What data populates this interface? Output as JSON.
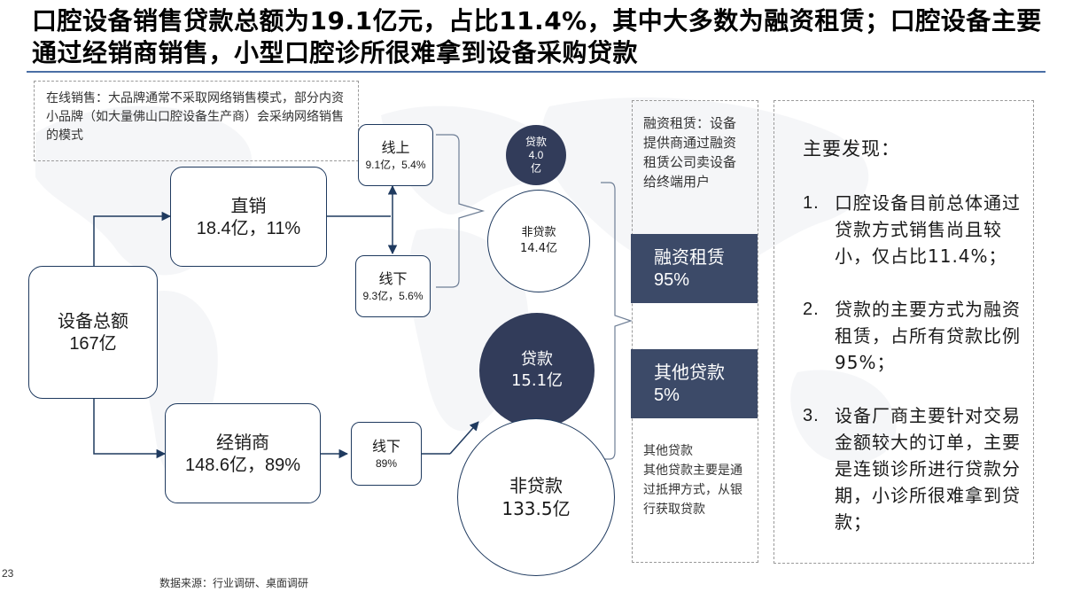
{
  "title": "口腔设备销售贷款总额为19.1亿元，占比11.4%，其中大多数为融资租赁；口腔设备主要通过经销商销售，小型口腔诊所很难拿到设备采购贷款",
  "online_note": "在线销售：大品牌通常不采取网络销售模式，部分内资小品牌（如大量佛山口腔设备生产商）会采纳网络销售的模式",
  "total": {
    "label": "设备总额",
    "value": "167亿"
  },
  "direct": {
    "label": "直销",
    "value": "18.4亿，11%"
  },
  "dealer": {
    "label": "经销商",
    "value": "148.6亿，89%"
  },
  "online": {
    "label": "线上",
    "value": "9.1亿，5.4%"
  },
  "offline_direct": {
    "label": "线下",
    "value": "9.3亿，5.6%"
  },
  "offline_dealer": {
    "label": "线下",
    "value": "89%"
  },
  "loan_small": {
    "label": "贷款",
    "value": "4.0",
    "unit": "亿"
  },
  "nonloan_small": {
    "label": "非贷款",
    "value": "14.4亿"
  },
  "loan_big": {
    "label": "贷款",
    "value": "15.1亿"
  },
  "nonloan_big": {
    "label": "非贷款",
    "value": "133.5亿"
  },
  "leasing_note": "融资租赁：设备提供商通过融资租赁公司卖设备给终端用户",
  "leasing": {
    "label": "融资租赁",
    "pct": "95%"
  },
  "other_loan": {
    "label": "其他贷款",
    "pct": "5%"
  },
  "other_note": "其他贷款\n其他贷款主要是通过抵押方式，从银行获取贷款",
  "findings": {
    "heading": "主要发现：",
    "items": [
      {
        "num": "1.",
        "text": "口腔设备目前总体通过贷款方式销售尚且较小，仅占比11.4%；"
      },
      {
        "num": "2.",
        "text": "贷款的主要方式为融资租赁，占所有贷款比例95%；"
      },
      {
        "num": "3.",
        "text": "设备厂商主要针对交易金额较大的订单，主要是连锁诊所进行贷款分期，小诊所很难拿到贷款；"
      }
    ]
  },
  "page_number": "23",
  "source": "数据来源：行业调研、桌面调研",
  "colors": {
    "navy": "#323c5a",
    "box_border": "#1f3a5f",
    "rule": "#4a6fa5"
  }
}
